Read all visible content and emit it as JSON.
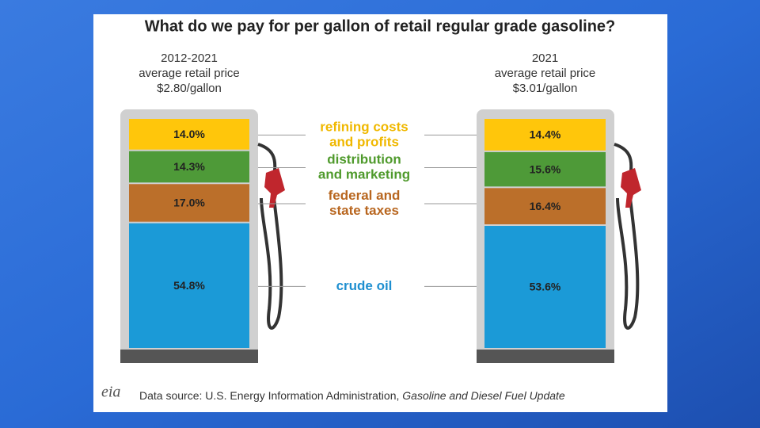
{
  "chart_data": {
    "type": "stacked-bar",
    "title": "What do we pay for per gallon of retail regular grade gasoline?",
    "categories": [
      [
        "2012-2021",
        "average retail price",
        "$2.80/gallon"
      ],
      [
        "2021",
        "average retail price",
        "$3.01/gallon"
      ]
    ],
    "series": [
      {
        "name": [
          "crude oil"
        ],
        "color": "#1b9ad7",
        "label_color": "#1e8fd0",
        "values": [
          54.8,
          53.6
        ],
        "value_labels": [
          "54.8%",
          "53.6%"
        ]
      },
      {
        "name": [
          "federal and",
          "state taxes"
        ],
        "color": "#bb6f2a",
        "label_color": "#b8661f",
        "values": [
          17.0,
          16.4
        ],
        "value_labels": [
          "17.0%",
          "16.4%"
        ]
      },
      {
        "name": [
          "distribution",
          "and marketing"
        ],
        "color": "#4e9a38",
        "label_color": "#4f9a2c",
        "values": [
          14.3,
          15.6
        ],
        "value_labels": [
          "14.3%",
          "15.6%"
        ]
      },
      {
        "name": [
          "refining costs",
          "and profits"
        ],
        "color": "#ffc60b",
        "label_color": "#f0b800",
        "values": [
          14.0,
          14.4
        ],
        "value_labels": [
          "14.0%",
          "14.4%"
        ]
      }
    ],
    "logo": "eia",
    "source": {
      "prefix": "Data source: U.S. Energy Information Administration, ",
      "title": "Gasoline and Diesel Fuel Update"
    }
  }
}
